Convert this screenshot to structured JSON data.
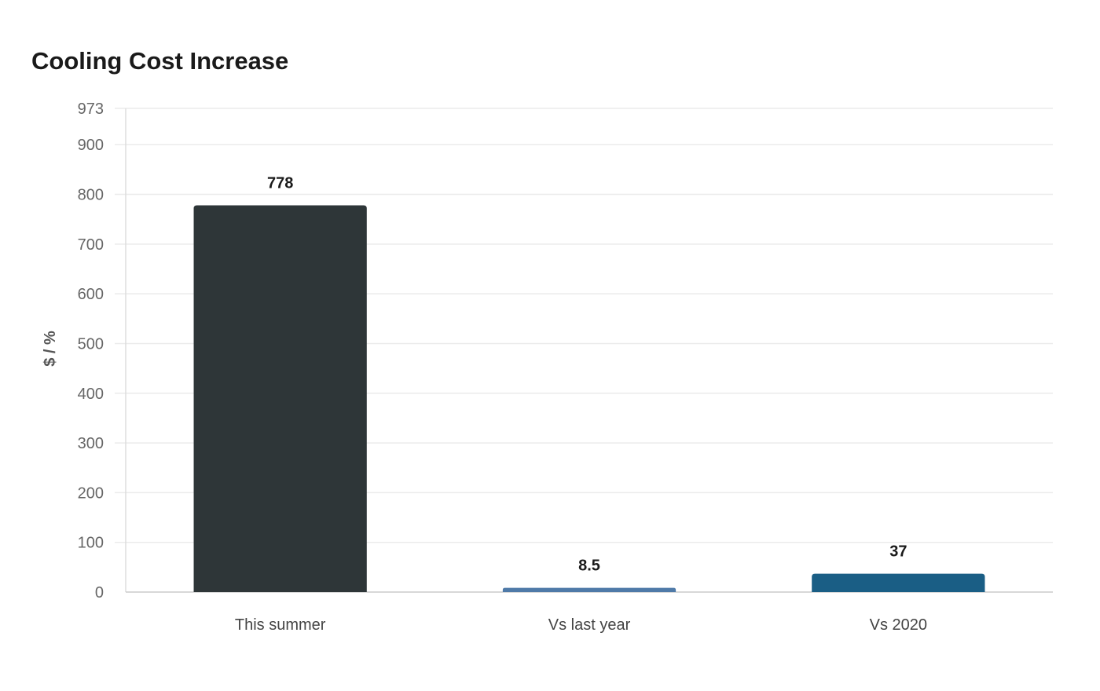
{
  "chart_data": {
    "type": "bar",
    "title": "Cooling Cost Increase",
    "xlabel": "",
    "ylabel": "$ / %",
    "categories": [
      "This summer",
      "Vs last year",
      "Vs 2020"
    ],
    "values": [
      778,
      8.5,
      37
    ],
    "value_labels": [
      "778",
      "8.5",
      "37"
    ],
    "colors": [
      "#2e3638",
      "#4f7aa8",
      "#1a5e85"
    ],
    "ylim": [
      0,
      973
    ],
    "yticks": [
      0,
      100,
      200,
      300,
      400,
      500,
      600,
      700,
      800,
      900,
      973
    ],
    "grid": true,
    "legend": "none"
  }
}
